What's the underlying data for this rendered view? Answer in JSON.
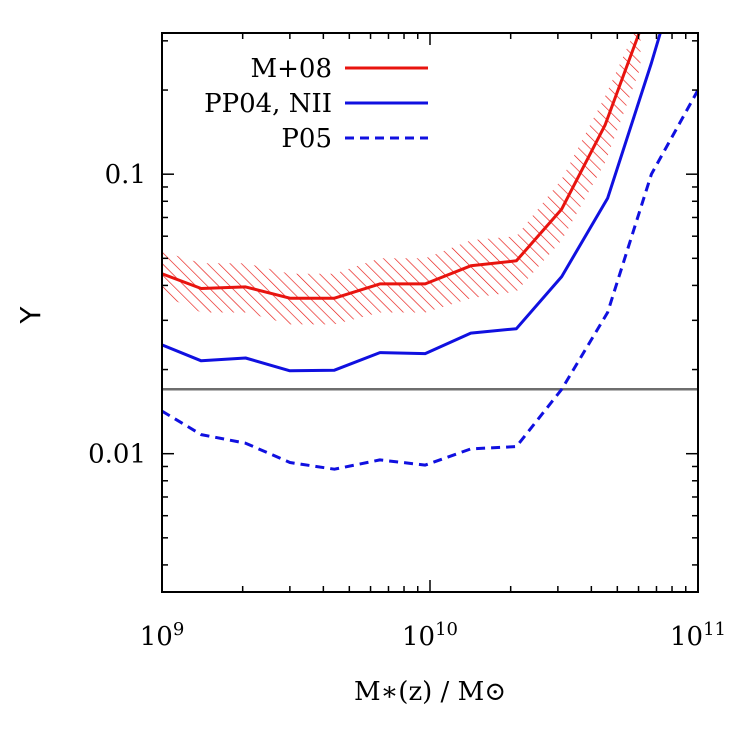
{
  "chart_data": {
    "type": "line",
    "xlabel": "M∗(z) / M⊙",
    "ylabel": "Y",
    "x_scale": "log",
    "y_scale": "log",
    "xlim": [
      1000000000.0,
      100000000000.0
    ],
    "ylim": [
      0.0032,
      0.32
    ],
    "x_ticks": [
      {
        "value": 1000000000.0,
        "base": "10",
        "exp": "9"
      },
      {
        "value": 10000000000.0,
        "base": "10",
        "exp": "10"
      },
      {
        "value": 100000000000.0,
        "base": "10",
        "exp": "11"
      }
    ],
    "y_ticks": [
      {
        "value": 0.01,
        "label": "0.01"
      },
      {
        "value": 0.1,
        "label": "0.1"
      }
    ],
    "reference_line": {
      "y": 0.017,
      "color": "#6e6e6e"
    },
    "series": [
      {
        "name": "M+08",
        "color": "#e8140f",
        "style": "solid",
        "x": [
          1000000000.0,
          1400000000.0,
          2050000000.0,
          3000000000.0,
          4400000000.0,
          6500000000.0,
          9600000000.0,
          14200000000.0,
          21000000000.0,
          31000000000.0,
          45000000000.0,
          61000000000.0
        ],
        "y": [
          0.044,
          0.039,
          0.0395,
          0.036,
          0.036,
          0.0405,
          0.0405,
          0.047,
          0.049,
          0.075,
          0.15,
          0.33
        ],
        "band_low": [
          0.037,
          0.032,
          0.032,
          0.029,
          0.029,
          0.032,
          0.032,
          0.036,
          0.038,
          0.058,
          0.11,
          0.24
        ],
        "band_high": [
          0.053,
          0.048,
          0.048,
          0.044,
          0.044,
          0.05,
          0.05,
          0.058,
          0.06,
          0.096,
          0.19,
          0.36
        ],
        "band_color": "#e8140f"
      },
      {
        "name": "PP04, NII",
        "color": "#1010e0",
        "style": "solid",
        "x": [
          1000000000.0,
          1400000000.0,
          2050000000.0,
          3000000000.0,
          4400000000.0,
          6500000000.0,
          9600000000.0,
          14200000000.0,
          21000000000.0,
          31000000000.0,
          46000000000.0,
          67000000000.0,
          73000000000.0
        ],
        "y": [
          0.0245,
          0.0215,
          0.022,
          0.0198,
          0.0199,
          0.023,
          0.0228,
          0.027,
          0.028,
          0.043,
          0.082,
          0.25,
          0.33
        ],
        "band_low": [],
        "band_high": [],
        "band_color": ""
      },
      {
        "name": "P05",
        "color": "#1010e0",
        "style": "dashed",
        "x": [
          1000000000.0,
          1400000000.0,
          2050000000.0,
          3000000000.0,
          4400000000.0,
          6500000000.0,
          9600000000.0,
          14200000000.0,
          21000000000.0,
          31000000000.0,
          46000000000.0,
          67000000000.0,
          100000000000.0
        ],
        "y": [
          0.0142,
          0.0117,
          0.0109,
          0.0093,
          0.0088,
          0.0095,
          0.0091,
          0.0104,
          0.0106,
          0.017,
          0.032,
          0.1,
          0.2
        ],
        "band_low": [],
        "band_high": [],
        "band_color": ""
      }
    ],
    "legend": {
      "position": "top-left"
    }
  }
}
